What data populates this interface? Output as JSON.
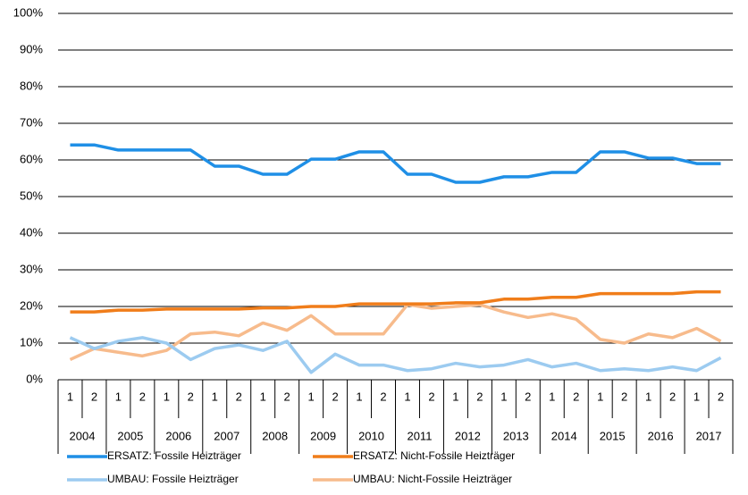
{
  "chart_data": {
    "type": "line",
    "categories": [
      "1",
      "2",
      "1",
      "2",
      "1",
      "2",
      "1",
      "2",
      "1",
      "2",
      "1",
      "2",
      "1",
      "2",
      "1",
      "2",
      "1",
      "2",
      "1",
      "2",
      "1",
      "2",
      "1",
      "2",
      "1",
      "2",
      "1",
      "2"
    ],
    "x_groups": [
      "2004",
      "2005",
      "2006",
      "2007",
      "2008",
      "2009",
      "2010",
      "2011",
      "2012",
      "2013",
      "2014",
      "2015",
      "2016",
      "2017"
    ],
    "ylim": [
      0,
      100
    ],
    "yticks": [
      {
        "value": 0,
        "label": "0%"
      },
      {
        "value": 10,
        "label": "10%"
      },
      {
        "value": 20,
        "label": "20%"
      },
      {
        "value": 30,
        "label": "30%"
      },
      {
        "value": 40,
        "label": "40%"
      },
      {
        "value": 50,
        "label": "50%"
      },
      {
        "value": 60,
        "label": "60%"
      },
      {
        "value": 70,
        "label": "70%"
      },
      {
        "value": 80,
        "label": "80%"
      },
      {
        "value": 90,
        "label": "90%"
      },
      {
        "value": 100,
        "label": "100%"
      }
    ],
    "grid": true,
    "series": [
      {
        "name": "ERSATZ: Fossile Heizträger",
        "color": "#1f8fe6",
        "values": [
          64.1,
          64.1,
          62.7,
          62.7,
          62.7,
          62.7,
          58.3,
          58.3,
          56.1,
          56.1,
          60.2,
          60.2,
          62.2,
          62.2,
          56.1,
          56.1,
          53.9,
          53.9,
          55.4,
          55.4,
          56.6,
          56.6,
          62.2,
          62.2,
          60.5,
          60.5,
          59.0,
          59.0
        ]
      },
      {
        "name": "ERSATZ: Nicht-Fossile Heizträger",
        "color": "#f07d1a",
        "values": [
          18.5,
          18.5,
          19,
          19,
          19.3,
          19.3,
          19.3,
          19.3,
          19.6,
          19.6,
          20,
          20,
          20.7,
          20.7,
          20.7,
          20.7,
          21,
          21,
          22,
          22,
          22.5,
          22.5,
          23.5,
          23.5,
          23.5,
          23.5,
          24,
          24
        ]
      },
      {
        "name": "UMBAU: Fossile Heizträger",
        "color": "#9ccbf0",
        "values": [
          11.5,
          8.5,
          10.5,
          11.5,
          10,
          5.5,
          8.5,
          9.5,
          8,
          10.5,
          2,
          7,
          4,
          4,
          2.5,
          3,
          4.5,
          3.5,
          4,
          5.5,
          3.5,
          4.5,
          2.5,
          3,
          2.5,
          3.5,
          2.5,
          6
        ]
      },
      {
        "name": "UMBAU: Nicht-Fossile Heizträger",
        "color": "#f7bb8c",
        "values": [
          5.5,
          8.5,
          7.5,
          6.5,
          8,
          12.5,
          13,
          12,
          15.5,
          13.5,
          17.5,
          12.5,
          12.5,
          12.5,
          20.5,
          19.5,
          20,
          20.5,
          18.5,
          17,
          18,
          16.5,
          11,
          10,
          12.5,
          11.5,
          14,
          10.5
        ]
      }
    ]
  }
}
